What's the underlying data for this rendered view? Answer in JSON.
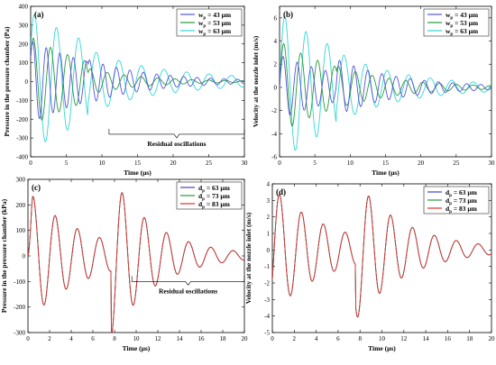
{
  "chart_data": [
    {
      "id": "a",
      "type": "line",
      "panel_label": "(a)",
      "xlabel": "Time (µs)",
      "ylabel": "Pressure in the pressure chamber (Pa)",
      "xlim": [
        0,
        30
      ],
      "ylim": [
        -400,
        400
      ],
      "xticks": [
        "0",
        "5",
        "10",
        "15",
        "20",
        "25",
        "30"
      ],
      "yticks": [
        "-400",
        "-300",
        "-200",
        "-100",
        "0",
        "100",
        "200",
        "300",
        "400"
      ],
      "legend_position": "top-right",
      "legend": [
        {
          "sym": "w",
          "sub": "p",
          "value": "= 43 µm"
        },
        {
          "sym": "w",
          "sub": "p",
          "value": "= 53 µm"
        },
        {
          "sym": "w",
          "sub": "p",
          "value": "= 63 µm"
        }
      ],
      "annotation": "Residual oscillations",
      "annotation_range": [
        11,
        30
      ],
      "series": [
        {
          "color": "#5555dd",
          "amplitude": 220,
          "period": 1.9,
          "decay": 0.09,
          "phase": 0.6
        },
        {
          "color": "#2a9a3a",
          "amplitude": 240,
          "period": 2.4,
          "decay": 0.1,
          "phase": 0.55
        },
        {
          "color": "#33d6d6",
          "amplitude": 370,
          "period": 3.1,
          "decay": 0.07,
          "phase": 0.5
        }
      ]
    },
    {
      "id": "b",
      "type": "line",
      "panel_label": "(b)",
      "xlabel": "Time (µs)",
      "ylabel": "Velocity at the nozzle inlet (m/s)",
      "xlim": [
        0,
        30
      ],
      "ylim": [
        -6,
        7
      ],
      "xticks": [
        "0",
        "5",
        "10",
        "15",
        "20",
        "25",
        "30"
      ],
      "yticks": [
        "-6",
        "-4",
        "-2",
        "0",
        "2",
        "4",
        "6"
      ],
      "legend_position": "top-right",
      "legend": [
        {
          "sym": "w",
          "sub": "p",
          "value": "= 43 µm"
        },
        {
          "sym": "w",
          "sub": "p",
          "value": "= 53 µm"
        },
        {
          "sym": "w",
          "sub": "p",
          "value": "= 63 µm"
        }
      ],
      "series": [
        {
          "color": "#5555dd",
          "amplitude": 2.8,
          "period": 2.0,
          "decay": 0.1,
          "phase": 0.0
        },
        {
          "color": "#2a9a3a",
          "amplitude": 4.0,
          "period": 2.4,
          "decay": 0.1,
          "phase": 0.0
        },
        {
          "color": "#33d6d6",
          "amplitude": 6.5,
          "period": 3.0,
          "decay": 0.08,
          "phase": 0.0
        }
      ]
    },
    {
      "id": "c",
      "type": "line",
      "panel_label": "(c)",
      "xlabel": "Time (µs)",
      "ylabel": "Pressure in the pressure chamber (kPa)",
      "xlim": [
        0,
        20
      ],
      "ylim": [
        -300,
        300
      ],
      "xticks": [
        "0",
        "2",
        "4",
        "6",
        "8",
        "10",
        "12",
        "14",
        "16",
        "18",
        "20"
      ],
      "yticks": [
        "-300",
        "-200",
        "-100",
        "0",
        "100",
        "200",
        "300"
      ],
      "legend_position": "top-right",
      "legend": [
        {
          "sym": "d",
          "sub": "p",
          "value": "= 63 µm"
        },
        {
          "sym": "d",
          "sub": "p",
          "value": "= 73 µm"
        },
        {
          "sym": "d",
          "sub": "p",
          "value": "= 83 µm"
        }
      ],
      "annotation": "Residual oscillations",
      "annotation_range": [
        9.6,
        20
      ],
      "series": [
        {
          "color": "#4444cc",
          "amplitude": 255,
          "period": 2.05,
          "decay": 0.19,
          "phase": 0.12
        },
        {
          "color": "#2a9a3a",
          "amplitude": 255,
          "period": 2.05,
          "decay": 0.19,
          "phase": 0.12
        },
        {
          "color": "#dd3333",
          "amplitude": 255,
          "period": 2.05,
          "decay": 0.19,
          "phase": 0.12
        }
      ]
    },
    {
      "id": "d",
      "type": "line",
      "panel_label": "(d)",
      "xlabel": "Time (µs)",
      "ylabel": "Velocity at the nozzle inlet (m/s)",
      "xlim": [
        0,
        20
      ],
      "ylim": [
        -5,
        4
      ],
      "xticks": [
        "0",
        "2",
        "4",
        "6",
        "8",
        "10",
        "12",
        "14",
        "16",
        "18",
        "20"
      ],
      "yticks": [
        "-5",
        "-4",
        "-3",
        "-2",
        "-1",
        "0",
        "1",
        "2",
        "3",
        "4"
      ],
      "legend_position": "top-right",
      "legend": [
        {
          "sym": "d",
          "sub": "p",
          "value": "= 63 µm"
        },
        {
          "sym": "d",
          "sub": "p",
          "value": "= 73 µm"
        },
        {
          "sym": "d",
          "sub": "p",
          "value": "= 83 µm"
        }
      ],
      "series": [
        {
          "color": "#4444cc",
          "amplitude": 3.8,
          "period": 2.0,
          "decay": 0.19,
          "phase": -0.5
        },
        {
          "color": "#2a9a3a",
          "amplitude": 3.8,
          "period": 2.0,
          "decay": 0.19,
          "phase": -0.5
        },
        {
          "color": "#dd3333",
          "amplitude": 3.8,
          "period": 2.0,
          "decay": 0.19,
          "phase": -0.5
        }
      ]
    }
  ]
}
